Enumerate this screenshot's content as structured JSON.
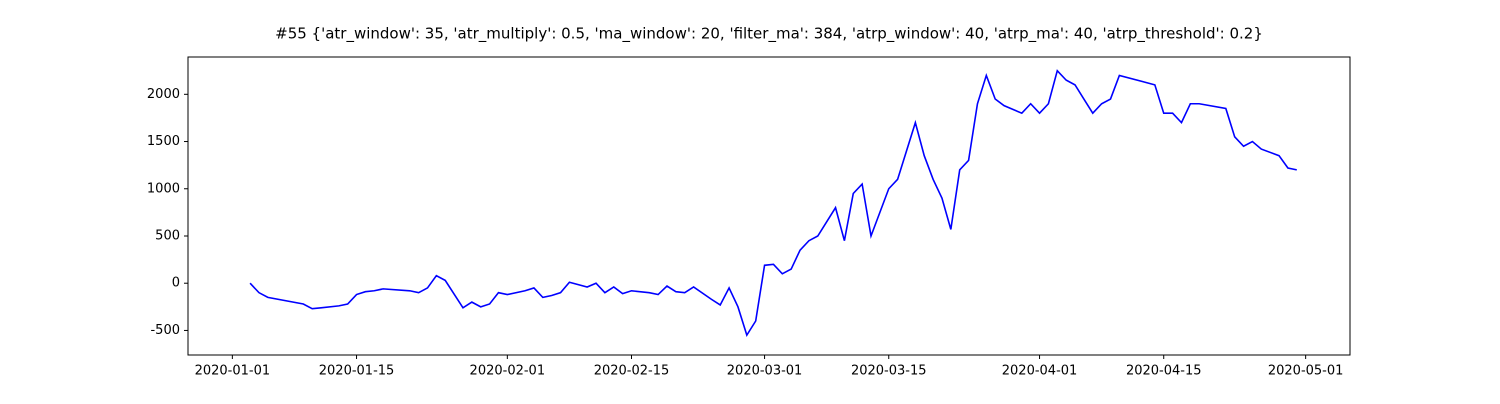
{
  "chart_data": {
    "type": "line",
    "title": "#55 {'atr_window': 35, 'atr_multiply': 0.5, 'ma_window': 20, 'filter_ma': 384, 'atrp_window': 40, 'atrp_ma': 40, 'atrp_threshold': 0.2}",
    "x": [
      "2020-01-03",
      "2020-01-04",
      "2020-01-05",
      "2020-01-09",
      "2020-01-10",
      "2020-01-11",
      "2020-01-13",
      "2020-01-14",
      "2020-01-15",
      "2020-01-16",
      "2020-01-17",
      "2020-01-18",
      "2020-01-21",
      "2020-01-22",
      "2020-01-23",
      "2020-01-24",
      "2020-01-25",
      "2020-01-27",
      "2020-01-28",
      "2020-01-29",
      "2020-01-30",
      "2020-01-31",
      "2020-02-01",
      "2020-02-03",
      "2020-02-04",
      "2020-02-05",
      "2020-02-06",
      "2020-02-07",
      "2020-02-08",
      "2020-02-10",
      "2020-02-11",
      "2020-02-12",
      "2020-02-13",
      "2020-02-14",
      "2020-02-15",
      "2020-02-17",
      "2020-02-18",
      "2020-02-19",
      "2020-02-20",
      "2020-02-21",
      "2020-02-22",
      "2020-02-24",
      "2020-02-25",
      "2020-02-26",
      "2020-02-27",
      "2020-02-28",
      "2020-02-29",
      "2020-03-01",
      "2020-03-02",
      "2020-03-03",
      "2020-03-04",
      "2020-03-05",
      "2020-03-06",
      "2020-03-07",
      "2020-03-09",
      "2020-03-10",
      "2020-03-11",
      "2020-03-12",
      "2020-03-13",
      "2020-03-14",
      "2020-03-15",
      "2020-03-16",
      "2020-03-17",
      "2020-03-18",
      "2020-03-19",
      "2020-03-20",
      "2020-03-21",
      "2020-03-22",
      "2020-03-23",
      "2020-03-24",
      "2020-03-25",
      "2020-03-26",
      "2020-03-27",
      "2020-03-28",
      "2020-03-30",
      "2020-03-31",
      "2020-04-01",
      "2020-04-02",
      "2020-04-03",
      "2020-04-04",
      "2020-04-05",
      "2020-04-06",
      "2020-04-07",
      "2020-04-08",
      "2020-04-09",
      "2020-04-10",
      "2020-04-14",
      "2020-04-15",
      "2020-04-16",
      "2020-04-17",
      "2020-04-18",
      "2020-04-19",
      "2020-04-22",
      "2020-04-23",
      "2020-04-24",
      "2020-04-25",
      "2020-04-26",
      "2020-04-28",
      "2020-04-29",
      "2020-04-30"
    ],
    "values": [
      0,
      -100,
      -150,
      -220,
      -270,
      -260,
      -240,
      -220,
      -120,
      -90,
      -80,
      -60,
      -80,
      -100,
      -50,
      80,
      30,
      -260,
      -200,
      -250,
      -220,
      -100,
      -120,
      -80,
      -50,
      -150,
      -130,
      -100,
      10,
      -40,
      0,
      -100,
      -40,
      -110,
      -80,
      -100,
      -120,
      -30,
      -90,
      -100,
      -40,
      -170,
      -230,
      -50,
      -250,
      -550,
      -400,
      190,
      200,
      100,
      150,
      350,
      450,
      500,
      800,
      450,
      950,
      1050,
      500,
      750,
      1000,
      1100,
      1400,
      1700,
      1350,
      1100,
      900,
      570,
      1200,
      1300,
      1900,
      2200,
      1950,
      1880,
      1800,
      1900,
      1800,
      1900,
      2250,
      2150,
      2100,
      1950,
      1800,
      1900,
      1950,
      2200,
      2100,
      1800,
      1800,
      1700,
      1900,
      1900,
      1850,
      1550,
      1450,
      1500,
      1420,
      1350,
      1220,
      1200
    ],
    "color": "#0000ff",
    "xlim": [
      "2019-12-27",
      "2020-05-06"
    ],
    "xticks": [
      "2020-01-01",
      "2020-01-15",
      "2020-02-01",
      "2020-02-15",
      "2020-03-01",
      "2020-03-15",
      "2020-04-01",
      "2020-04-15",
      "2020-05-01"
    ],
    "ylim": [
      -760,
      2395
    ],
    "yticks": [
      -500,
      0,
      500,
      1000,
      1500,
      2000
    ]
  }
}
